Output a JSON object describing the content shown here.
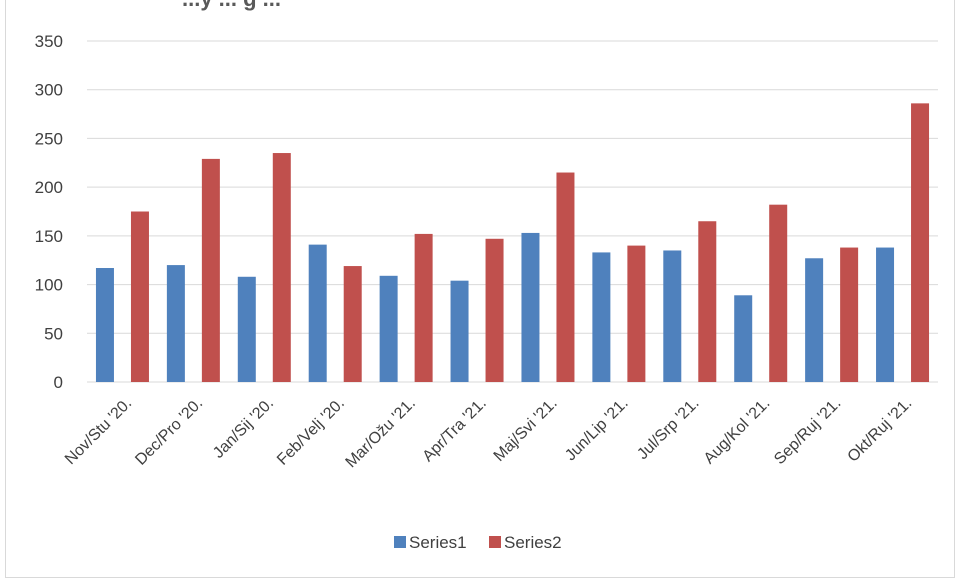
{
  "title_fragment": "...y ... g ...",
  "chart_data": {
    "type": "bar",
    "title": "",
    "xlabel": "",
    "ylabel": "",
    "ylim": [
      0,
      350
    ],
    "yticks": [
      0,
      50,
      100,
      150,
      200,
      250,
      300,
      350
    ],
    "grid": true,
    "legend": "bottom",
    "categories": [
      "Nov/Stu '20.",
      "Dec/Pro '20.",
      "Jan/Sij '20.",
      "Feb/Velj '20.",
      "Mar/Ožu '21.",
      "Apr/Tra '21.",
      "Maj/Svi '21.",
      "Jun/Lip '21.",
      "Jul/Srp '21.",
      "Aug/Kol '21.",
      "Sep/Ruj '21.",
      "Okt/Ruj '21."
    ],
    "series": [
      {
        "name": "Series1",
        "color": "#4f81bd",
        "values": [
          117,
          120,
          108,
          141,
          109,
          104,
          153,
          133,
          135,
          89,
          127,
          138
        ]
      },
      {
        "name": "Series2",
        "color": "#c0504d",
        "values": [
          175,
          229,
          235,
          119,
          152,
          147,
          215,
          140,
          165,
          182,
          138,
          286
        ]
      }
    ]
  }
}
